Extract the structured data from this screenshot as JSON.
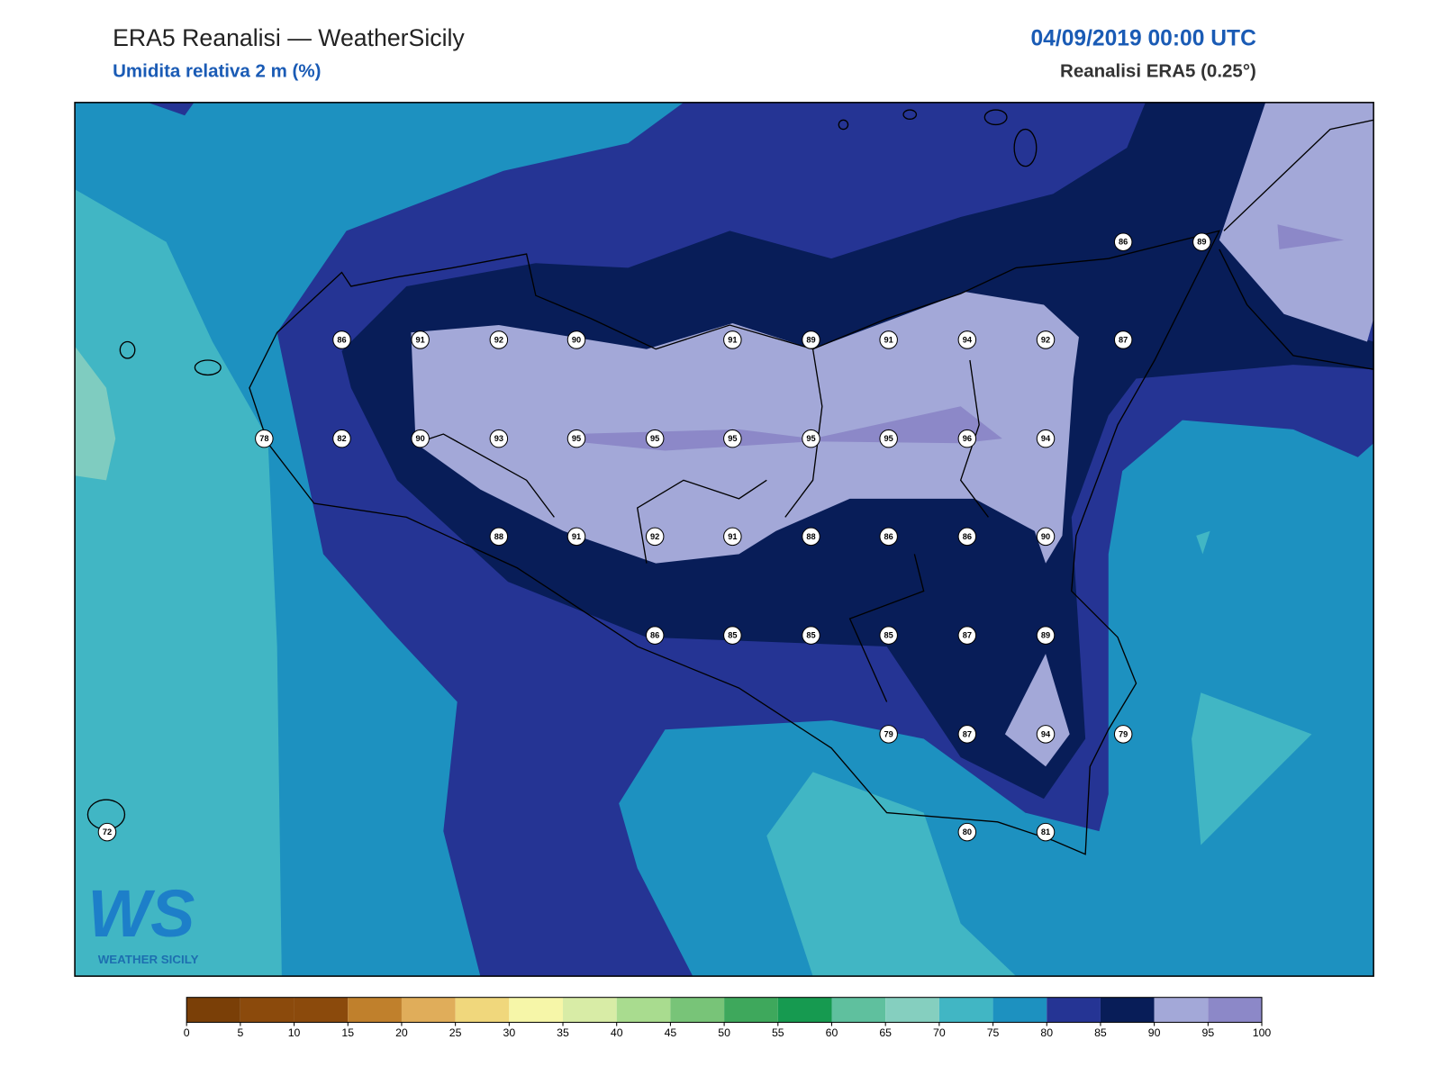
{
  "header": {
    "title": "ERA5 Reanalisi — WeatherSicily",
    "subtitle": "Umidita relativa 2 m (%)",
    "date": "04/09/2019 00:00 UTC",
    "source": "Reanalisi ERA5 (0.25°)"
  },
  "stations": [
    86,
    89,
    86,
    91,
    92,
    90,
    91,
    89,
    91,
    94,
    92,
    87,
    78,
    82,
    90,
    93,
    95,
    95,
    95,
    95,
    95,
    96,
    94,
    88,
    91,
    92,
    91,
    88,
    86,
    86,
    90,
    86,
    85,
    85,
    85,
    87,
    89,
    79,
    87,
    94,
    79,
    72,
    80,
    81
  ],
  "colorbar": {
    "ticks": [
      0,
      5,
      10,
      15,
      20,
      25,
      30,
      35,
      40,
      45,
      50,
      55,
      60,
      65,
      70,
      75,
      80,
      85,
      90,
      95,
      100
    ],
    "colors": [
      "#7a3f07",
      "#8b4a0c",
      "#8b4a0c",
      "#c0802c",
      "#e0ad5a",
      "#f0d77c",
      "#f6f6a8",
      "#d8eca6",
      "#a9dc8f",
      "#78c478",
      "#3ea85c",
      "#169a50",
      "#5fc09e",
      "#85cfbf",
      "#41b6c4",
      "#1d91c0",
      "#253494",
      "#081d58",
      "#a3a8d8",
      "#8c88c8"
    ]
  },
  "logo": {
    "mark": "WS",
    "name": "WEATHER SICILY"
  }
}
